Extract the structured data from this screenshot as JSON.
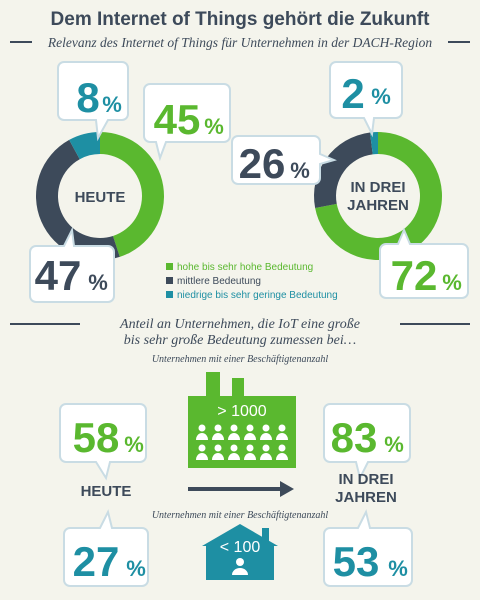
{
  "header": {
    "title": "Dem Internet of Things gehört die Zukunft",
    "subtitle": "Relevanz des Internet of Things für Unternehmen in der DACH-Region"
  },
  "colors": {
    "green": "#5ab82f",
    "dark": "#3d4a5a",
    "teal": "#1e8fa3",
    "bg": "#f4f4ec",
    "bubble_stroke": "#c9dce4"
  },
  "chart_data": [
    {
      "type": "pie",
      "variant": "donut",
      "title": "HEUTE",
      "categories": [
        "hohe bis sehr hohe Bedeutung",
        "mittlere Bedeutung",
        "niedrige bis sehr geringe Bedeutung"
      ],
      "values": [
        45,
        47,
        8
      ],
      "colors": [
        "#5ab82f",
        "#3d4a5a",
        "#1e8fa3"
      ]
    },
    {
      "type": "pie",
      "variant": "donut",
      "title": "IN DREI JAHREN",
      "categories": [
        "hohe bis sehr hohe Bedeutung",
        "mittlere Bedeutung",
        "niedrige bis sehr geringe Bedeutung"
      ],
      "values": [
        72,
        26,
        2
      ],
      "colors": [
        "#5ab82f",
        "#3d4a5a",
        "#1e8fa3"
      ]
    }
  ],
  "donuts": {
    "today_label": "HEUTE",
    "future_label_line1": "IN DREI",
    "future_label_line2": "JAHREN"
  },
  "legend": [
    {
      "label": "hohe bis sehr hohe Bedeutung",
      "color": "#5ab82f"
    },
    {
      "label": "mittlere Bedeutung",
      "color": "#3d4a5a"
    },
    {
      "label": "niedrige bis sehr geringe Bedeutung",
      "color": "#1e8fa3"
    }
  ],
  "callouts": {
    "today_low": "8",
    "today_high": "45",
    "today_mid": "47",
    "future_low": "2",
    "future_mid": "26",
    "future_high": "72",
    "pct_sign": "%"
  },
  "section2": {
    "heading_line1": "Anteil an Unternehmen, die IoT eine große",
    "heading_line2": "bis sehr große Bedeutung zumessen bei…",
    "note_large": "Unternehmen mit einer Beschäftigtenanzahl",
    "note_small": "Unternehmen mit einer Beschäftigtenanzahl",
    "large_label": "> 1000",
    "small_label": "< 100",
    "today_label": "HEUTE",
    "future_line1": "IN DREI",
    "future_line2": "JAHREN",
    "large_today": "58",
    "large_future": "83",
    "small_today": "27",
    "small_future": "53"
  }
}
